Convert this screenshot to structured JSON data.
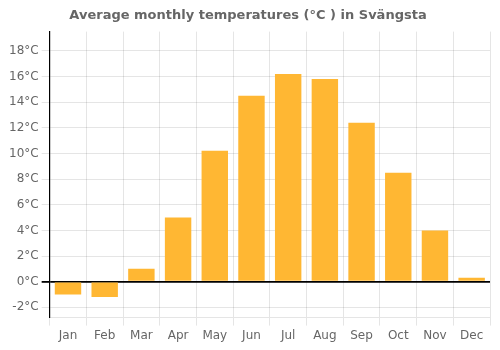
{
  "chart_data": {
    "type": "bar",
    "title": "Average monthly temperatures (°C ) in Svängsta",
    "categories": [
      "Jan",
      "Feb",
      "Mar",
      "Apr",
      "May",
      "Jun",
      "Jul",
      "Aug",
      "Sep",
      "Oct",
      "Nov",
      "Dec"
    ],
    "values": [
      -1.0,
      -1.2,
      1.0,
      5.0,
      10.2,
      14.5,
      16.2,
      15.8,
      12.4,
      8.5,
      4.0,
      0.3
    ],
    "color": "#FFB733",
    "ylim": [
      -2.8,
      19.5
    ],
    "yticks": [
      {
        "value": -2,
        "label": "-2°C"
      },
      {
        "value": 0,
        "label": "0°C"
      },
      {
        "value": 2,
        "label": "2°C"
      },
      {
        "value": 4,
        "label": "4°C"
      },
      {
        "value": 6,
        "label": "6°C"
      },
      {
        "value": 8,
        "label": "8°C"
      },
      {
        "value": 10,
        "label": "10°C"
      },
      {
        "value": 12,
        "label": "12°C"
      },
      {
        "value": 14,
        "label": "14°C"
      },
      {
        "value": 16,
        "label": "16°C"
      },
      {
        "value": 18,
        "label": "18°C"
      }
    ],
    "grid": true
  }
}
